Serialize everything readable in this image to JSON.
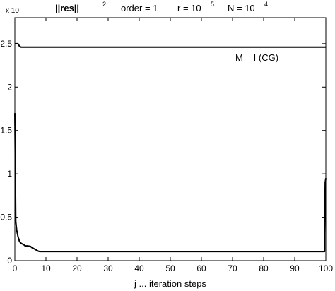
{
  "chart_data": {
    "type": "line",
    "title": {
      "res_label": "||res||",
      "res_exp": "2",
      "order": "order = 1",
      "r_base": "r = 10",
      "r_exp": "5",
      "N_base": "N = 10",
      "N_exp": "4"
    },
    "xlabel": "j ... iteration steps",
    "ylabel": "",
    "y_exponent_label": "x 10",
    "xlim": [
      0,
      100
    ],
    "ylim": [
      0,
      2.8
    ],
    "xticks": [
      0,
      10,
      20,
      30,
      40,
      50,
      60,
      70,
      80,
      90,
      100
    ],
    "yticks": [
      0,
      0.5,
      1,
      1.5,
      2,
      2.5
    ],
    "ytick_labels": [
      "0",
      "0.5",
      "1",
      "1.5",
      "2",
      "2.5"
    ],
    "grid": false,
    "annotation": "M = I  (CG)",
    "series": [
      {
        "x": [
          0,
          0.5,
          1.0,
          1.5,
          2.0,
          100
        ],
        "y": [
          2.5,
          2.5,
          2.5,
          2.47,
          2.46,
          2.46
        ]
      },
      {
        "x": [
          0,
          0.3,
          0.6,
          1,
          1.5,
          2,
          2.5,
          3,
          3.3,
          4,
          5,
          5.5,
          6,
          6.5,
          7,
          7.5,
          8,
          99.6,
          99.6,
          99.8,
          100
        ],
        "y": [
          1.7,
          0.45,
          0.35,
          0.28,
          0.22,
          0.2,
          0.19,
          0.18,
          0.17,
          0.17,
          0.165,
          0.15,
          0.14,
          0.13,
          0.12,
          0.11,
          0.105,
          0.105,
          0.3,
          0.9,
          0.95
        ]
      }
    ],
    "colors": {
      "line": "#000000",
      "axis": "#000000",
      "background": "#ffffff"
    }
  }
}
